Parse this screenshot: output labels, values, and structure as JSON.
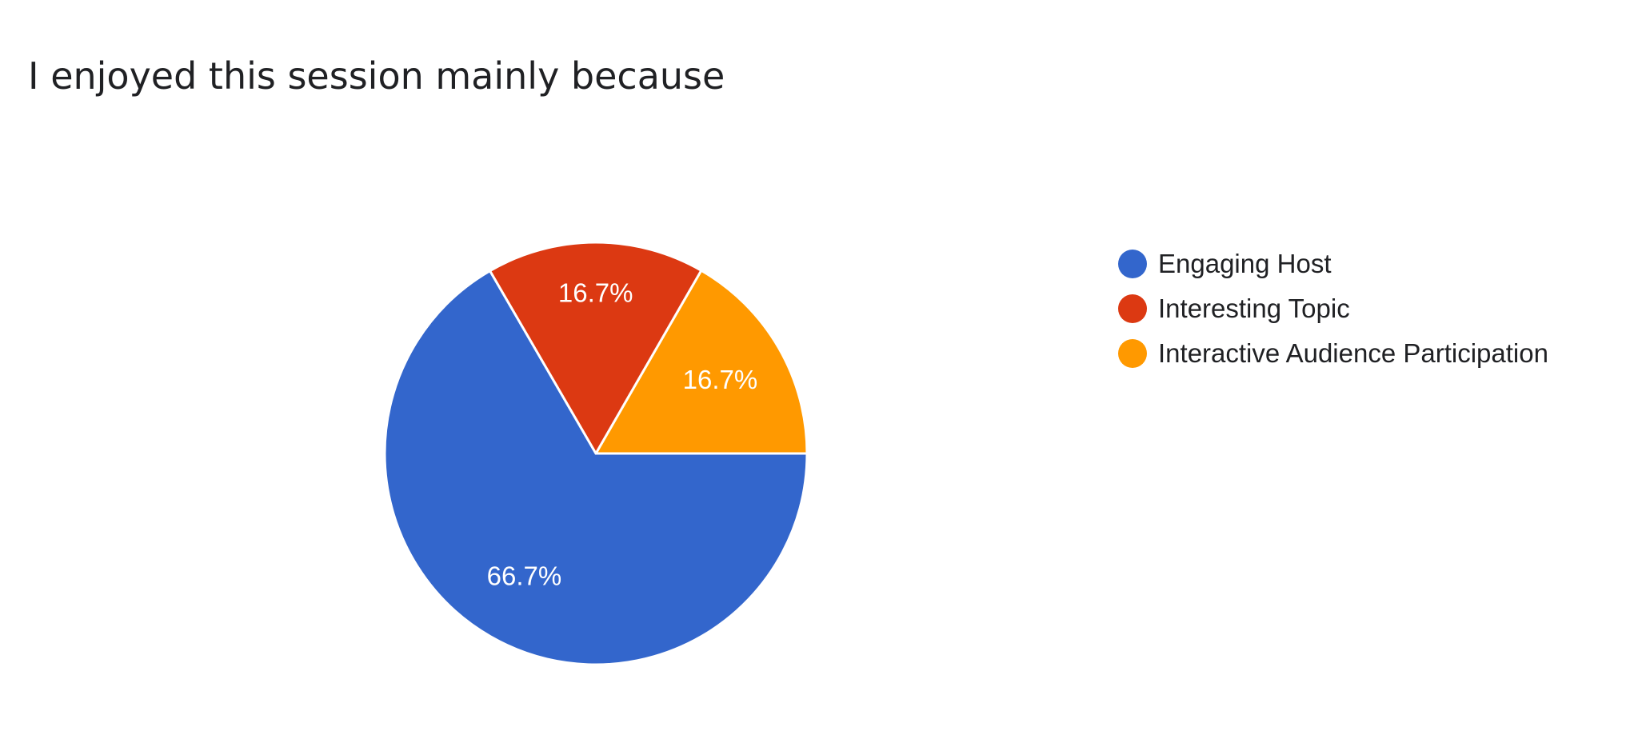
{
  "chart_data": {
    "type": "pie",
    "title": "I enjoyed this session mainly because",
    "categories": [
      "Engaging Host",
      "Interesting Topic",
      "Interactive Audience Participation"
    ],
    "values": [
      66.7,
      16.7,
      16.7
    ],
    "labels": [
      "66.7%",
      "16.7%",
      "16.7%"
    ],
    "colors": [
      "#3366cc",
      "#dc3912",
      "#ff9900"
    ],
    "legend_position": "right"
  }
}
